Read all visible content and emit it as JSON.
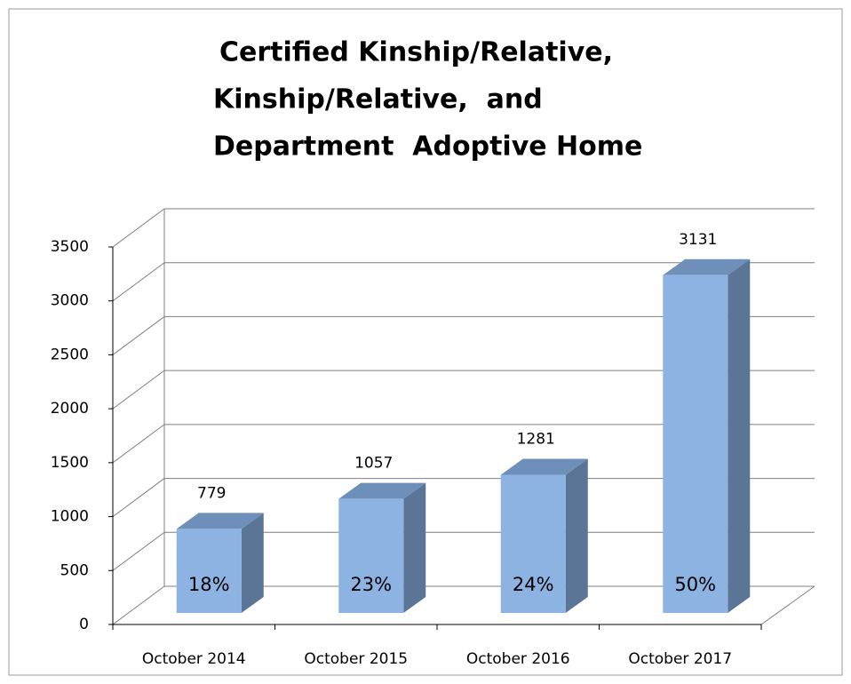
{
  "chart_data": {
    "type": "bar3d",
    "title": [
      "Certified Kinship/Relative,",
      "Kinship/Relative,  and",
      "Department  Adoptive Home"
    ],
    "categories": [
      "October 2014",
      "October 2015",
      "October 2016",
      "October 2017"
    ],
    "values": [
      779,
      1057,
      1281,
      3131
    ],
    "annotations": [
      "18%",
      "23%",
      "24%",
      "50%"
    ],
    "color": "#8db3e2",
    "ylim": [
      0,
      3500
    ],
    "yticks": [
      0,
      500,
      1000,
      1500,
      2000,
      2500,
      3000,
      3500
    ],
    "grid": true
  }
}
